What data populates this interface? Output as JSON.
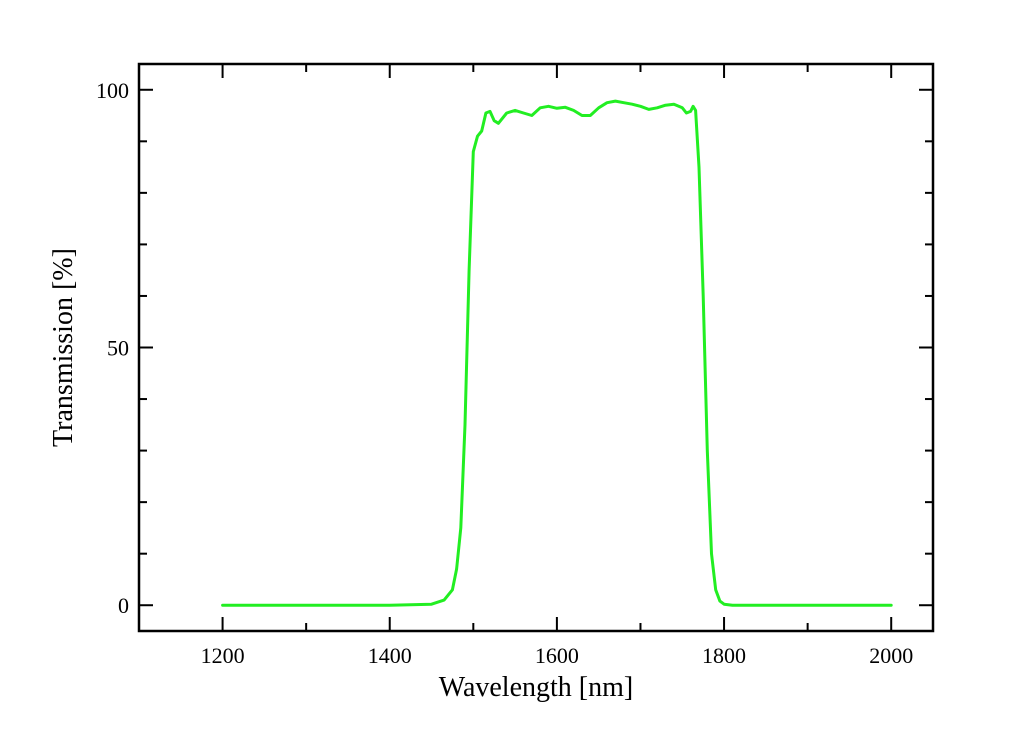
{
  "chart_data": {
    "type": "line",
    "xlabel": "Wavelength  [nm]",
    "ylabel": "Transmission  [%]",
    "xlim": [
      1100,
      2050
    ],
    "ylim": [
      -5,
      105
    ],
    "xticks": [
      1200,
      1400,
      1600,
      1800,
      2000
    ],
    "yticks": [
      0,
      50,
      100
    ],
    "x_minor_step": 100,
    "y_minor_step": 10,
    "grid": false,
    "series": [
      {
        "color": "#22ee22",
        "x": [
          1200,
          1300,
          1400,
          1450,
          1465,
          1475,
          1480,
          1485,
          1490,
          1495,
          1500,
          1505,
          1510,
          1515,
          1520,
          1525,
          1530,
          1540,
          1550,
          1560,
          1570,
          1580,
          1590,
          1600,
          1610,
          1620,
          1630,
          1640,
          1650,
          1660,
          1670,
          1680,
          1690,
          1700,
          1710,
          1720,
          1730,
          1740,
          1750,
          1755,
          1760,
          1763,
          1766,
          1770,
          1775,
          1780,
          1785,
          1790,
          1795,
          1800,
          1810,
          1850,
          1900,
          2000
        ],
        "y": [
          0,
          0,
          0,
          0.2,
          1,
          3,
          7,
          15,
          35,
          65,
          88,
          91,
          92,
          95.5,
          95.8,
          94,
          93.5,
          95.5,
          96,
          95.5,
          95,
          96.5,
          96.8,
          96.4,
          96.6,
          96,
          95,
          95,
          96.5,
          97.5,
          97.8,
          97.5,
          97.2,
          96.8,
          96.2,
          96.5,
          97,
          97.2,
          96.5,
          95.5,
          95.8,
          96.8,
          96,
          85,
          60,
          30,
          10,
          3,
          0.8,
          0.2,
          0,
          0,
          0,
          0
        ]
      }
    ]
  }
}
